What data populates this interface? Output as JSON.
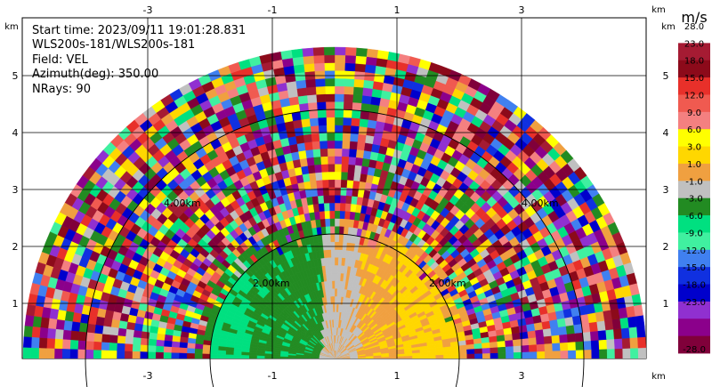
{
  "plot": {
    "info_lines": [
      "Start time: 2023/09/11 19:01:28.831",
      "WLS200s-181/WLS200s-181",
      "Field: VEL",
      "Azimuth(deg): 350.00",
      "NRays: 90"
    ],
    "x_unit": "km",
    "y_unit": "km",
    "x_ticks": [
      "-3",
      "-1",
      "1",
      "3"
    ],
    "y_ticks": [
      "1",
      "2",
      "3",
      "4",
      "5"
    ],
    "range_ring_labels": [
      "2.00km",
      "4.00km"
    ]
  },
  "colorbar": {
    "title": "m/s",
    "labels": [
      "28.0",
      "23.0",
      "18.0",
      "15.0",
      "12.0",
      "9.0",
      "6.0",
      "3.0",
      "1.0",
      "-1.0",
      "-3.0",
      "-6.0",
      "-9.0",
      "-12.0",
      "-15.0",
      "-18.0",
      "-23.0",
      "-28.0"
    ],
    "colors": [
      "#ffffff",
      "#a51b33",
      "#8c0a1a",
      "#e8302a",
      "#f05a50",
      "#f48080",
      "#ffff00",
      "#ffd700",
      "#f0a040",
      "#c0c0c0",
      "#228b22",
      "#00e080",
      "#40f0a0",
      "#4080f0",
      "#1030e0",
      "#0000cc",
      "#9030d0",
      "#8b008b",
      "#80003a"
    ]
  }
}
